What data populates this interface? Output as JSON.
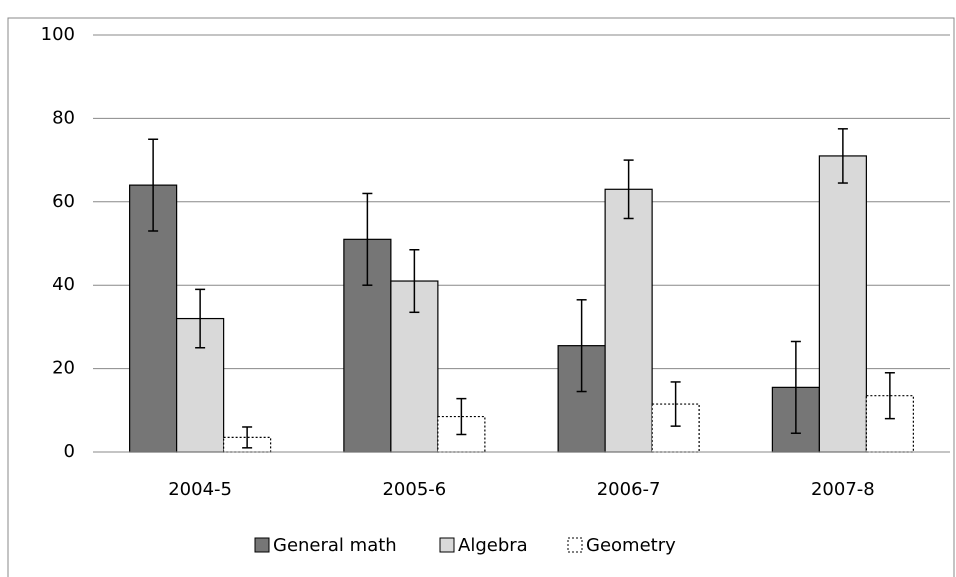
{
  "chart_data": {
    "type": "bar",
    "categories": [
      "2004-5",
      "2005-6",
      "2006-7",
      "2007-8"
    ],
    "series": [
      {
        "name": "General math",
        "color": "#767676",
        "values": [
          64,
          51,
          25.5,
          15.5
        ],
        "errors": [
          11,
          11,
          11,
          11
        ]
      },
      {
        "name": "Algebra",
        "color": "#d9d9d9",
        "values": [
          32,
          41,
          63,
          71
        ],
        "errors": [
          7,
          7.5,
          7,
          6.5
        ]
      },
      {
        "name": "Geometry",
        "color": "#ffffff",
        "values": [
          3.5,
          8.5,
          11.5,
          13.5
        ],
        "errors": [
          2.5,
          4.3,
          5.3,
          5.5
        ]
      }
    ],
    "ylim": [
      0,
      100
    ],
    "yticks": [
      0,
      20,
      40,
      60,
      80,
      100
    ],
    "grid": true,
    "legend": "bottom"
  }
}
